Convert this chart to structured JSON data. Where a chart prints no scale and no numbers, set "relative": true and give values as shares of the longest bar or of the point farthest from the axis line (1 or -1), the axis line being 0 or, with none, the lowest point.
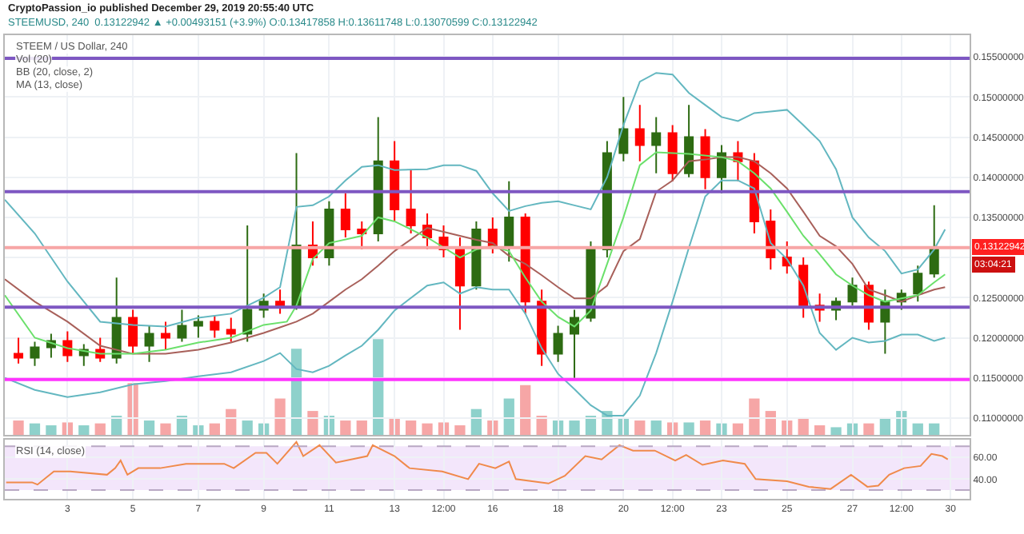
{
  "chart_data": [
    {
      "type": "candlestick",
      "title": "CryptoPassion_io published December 29, 2019 20:55:40 UTC",
      "subtitle": "STEEMUSD, 240  0.13122942 ▲ +0.00493151 (+3.9%) O:0.13417858 H:0.13611748 L:0.13070599 C:0.13122942",
      "annotations": [
        "STEEM / US Dollar, 240",
        "Vol (20)",
        "BB (20, close, 2)",
        "MA (13, close)",
        "03:04:21"
      ],
      "x": [
        "2019-12-01T12:00",
        "2019-12-02T00:00",
        "2019-12-02T12:00",
        "2019-12-03T00:00",
        "2019-12-03T12:00",
        "2019-12-04T00:00",
        "2019-12-04T12:00",
        "2019-12-05T00:00",
        "2019-12-05T12:00",
        "2019-12-06T00:00",
        "2019-12-06T12:00",
        "2019-12-07T00:00",
        "2019-12-07T12:00",
        "2019-12-08T00:00",
        "2019-12-08T12:00",
        "2019-12-09T00:00",
        "2019-12-09T12:00",
        "2019-12-10T00:00",
        "2019-12-10T12:00",
        "2019-12-11T00:00",
        "2019-12-11T12:00",
        "2019-12-12T00:00",
        "2019-12-12T12:00",
        "2019-12-13T00:00",
        "2019-12-13T12:00",
        "2019-12-14T00:00",
        "2019-12-14T12:00",
        "2019-12-15T00:00",
        "2019-12-15T12:00",
        "2019-12-16T00:00",
        "2019-12-16T12:00",
        "2019-12-17T00:00",
        "2019-12-17T12:00",
        "2019-12-18T00:00",
        "2019-12-18T12:00",
        "2019-12-19T00:00",
        "2019-12-19T12:00",
        "2019-12-20T00:00",
        "2019-12-20T12:00",
        "2019-12-21T00:00",
        "2019-12-21T12:00",
        "2019-12-22T00:00",
        "2019-12-22T12:00",
        "2019-12-23T00:00",
        "2019-12-23T12:00",
        "2019-12-24T00:00",
        "2019-12-24T12:00",
        "2019-12-25T00:00",
        "2019-12-25T12:00",
        "2019-12-26T00:00",
        "2019-12-26T12:00",
        "2019-12-27T00:00",
        "2019-12-27T12:00",
        "2019-12-28T00:00",
        "2019-12-28T12:00",
        "2019-12-29T00:00",
        "2019-12-29T12:00"
      ],
      "ohlc": [
        [
          0.118,
          0.12,
          0.1168,
          0.1175
        ],
        [
          0.1175,
          0.1195,
          0.1165,
          0.1188
        ],
        [
          0.1188,
          0.1205,
          0.1175,
          0.1196
        ],
        [
          0.1196,
          0.1208,
          0.117,
          0.1178
        ],
        [
          0.1178,
          0.1192,
          0.1165,
          0.1185
        ],
        [
          0.1185,
          0.12,
          0.117,
          0.1175
        ],
        [
          0.1175,
          0.1275,
          0.1168,
          0.1225
        ],
        [
          0.1225,
          0.1235,
          0.118,
          0.119
        ],
        [
          0.119,
          0.1215,
          0.117,
          0.1205
        ],
        [
          0.1205,
          0.122,
          0.1185,
          0.12
        ],
        [
          0.12,
          0.1235,
          0.1195,
          0.1215
        ],
        [
          0.1215,
          0.1228,
          0.12,
          0.122
        ],
        [
          0.122,
          0.1228,
          0.12,
          0.121
        ],
        [
          0.121,
          0.1225,
          0.1195,
          0.1205
        ],
        [
          0.1205,
          0.134,
          0.1195,
          0.1235
        ],
        [
          0.1235,
          0.1255,
          0.1225,
          0.1245
        ],
        [
          0.1245,
          0.126,
          0.123,
          0.124
        ],
        [
          0.124,
          0.143,
          0.1235,
          0.1315
        ],
        [
          0.1315,
          0.1345,
          0.129,
          0.13
        ],
        [
          0.13,
          0.137,
          0.129,
          0.136
        ],
        [
          0.136,
          0.138,
          0.1325,
          0.1335
        ],
        [
          0.1335,
          0.1345,
          0.131,
          0.133
        ],
        [
          0.133,
          0.1475,
          0.132,
          0.142
        ],
        [
          0.142,
          0.1445,
          0.1345,
          0.136
        ],
        [
          0.136,
          0.141,
          0.133,
          0.134
        ],
        [
          0.134,
          0.1355,
          0.131,
          0.1325
        ],
        [
          0.1325,
          0.134,
          0.13,
          0.131
        ],
        [
          0.131,
          0.1325,
          0.121,
          0.1265
        ],
        [
          0.1265,
          0.1345,
          0.126,
          0.1335
        ],
        [
          0.1335,
          0.135,
          0.1305,
          0.1315
        ],
        [
          0.1315,
          0.1395,
          0.1295,
          0.135
        ],
        [
          0.135,
          0.1355,
          0.123,
          0.1245
        ],
        [
          0.1245,
          0.126,
          0.1165,
          0.118
        ],
        [
          0.118,
          0.1215,
          0.117,
          0.1205
        ],
        [
          0.1205,
          0.1235,
          0.115,
          0.1225
        ],
        [
          0.1225,
          0.132,
          0.122,
          0.131
        ],
        [
          0.131,
          0.1445,
          0.13,
          0.143
        ],
        [
          0.143,
          0.15,
          0.142,
          0.146
        ],
        [
          0.146,
          0.149,
          0.142,
          0.144
        ],
        [
          0.144,
          0.1475,
          0.1405,
          0.1455
        ],
        [
          0.1455,
          0.1465,
          0.1395,
          0.1405
        ],
        [
          0.1405,
          0.149,
          0.14,
          0.145
        ],
        [
          0.145,
          0.146,
          0.1385,
          0.14
        ],
        [
          0.14,
          0.144,
          0.138,
          0.143
        ],
        [
          0.143,
          0.1445,
          0.1395,
          0.142
        ],
        [
          0.142,
          0.143,
          0.133,
          0.1345
        ],
        [
          0.1345,
          0.136,
          0.1285,
          0.13
        ],
        [
          0.13,
          0.132,
          0.128,
          0.129
        ],
        [
          0.129,
          0.13,
          0.1225,
          0.124
        ],
        [
          0.124,
          0.1255,
          0.122,
          0.1235
        ],
        [
          0.1235,
          0.125,
          0.1222,
          0.1245
        ],
        [
          0.1245,
          0.1275,
          0.124,
          0.1265
        ],
        [
          0.1265,
          0.127,
          0.121,
          0.122
        ],
        [
          0.122,
          0.126,
          0.118,
          0.1245
        ],
        [
          0.1245,
          0.126,
          0.1235,
          0.1255
        ],
        [
          0.1255,
          0.129,
          0.1245,
          0.128
        ],
        [
          0.128,
          0.1365,
          0.1275,
          0.1312
        ]
      ],
      "colors": [
        "#ff0000",
        "#2d6b12",
        "#2d6b12",
        "#ff0000",
        "#2d6b12",
        "#ff0000",
        "#2d6b12",
        "#ff0000",
        "#2d6b12",
        "#ff0000",
        "#2d6b12",
        "#2d6b12",
        "#ff0000",
        "#ff0000",
        "#2d6b12",
        "#2d6b12",
        "#ff0000",
        "#2d6b12",
        "#ff0000",
        "#2d6b12",
        "#ff0000",
        "#ff0000",
        "#2d6b12",
        "#ff0000",
        "#ff0000",
        "#ff0000",
        "#ff0000",
        "#ff0000",
        "#2d6b12",
        "#ff0000",
        "#2d6b12",
        "#ff0000",
        "#ff0000",
        "#2d6b12",
        "#2d6b12",
        "#2d6b12",
        "#2d6b12",
        "#2d6b12",
        "#ff0000",
        "#2d6b12",
        "#ff0000",
        "#2d6b12",
        "#ff0000",
        "#2d6b12",
        "#ff0000",
        "#ff0000",
        "#ff0000",
        "#ff0000",
        "#ff0000",
        "#ff0000",
        "#2d6b12",
        "#2d6b12",
        "#ff0000",
        "#2d6b12",
        "#2d6b12",
        "#2d6b12",
        "#2d6b12"
      ],
      "series": [
        {
          "type": "line",
          "color": "#63b7c0",
          "x": [
            "2019-12-01T02:00",
            "2019-12-02T00:00",
            "2019-12-03T00:00",
            "2019-12-04T00:00",
            "2019-12-05T00:00",
            "2019-12-06T00:00",
            "2019-12-07T00:00",
            "2019-12-08T00:00",
            "2019-12-09T00:00",
            "2019-12-09T12:00",
            "2019-12-10T00:00",
            "2019-12-10T12:00",
            "2019-12-11T00:00",
            "2019-12-11T12:00",
            "2019-12-12T00:00",
            "2019-12-12T12:00",
            "2019-12-13T00:00",
            "2019-12-14T00:00",
            "2019-12-14T12:00",
            "2019-12-15T00:00",
            "2019-12-15T12:00",
            "2019-12-16T00:00",
            "2019-12-16T12:00",
            "2019-12-17T00:00",
            "2019-12-17T12:00",
            "2019-12-18T00:00",
            "2019-12-18T12:00",
            "2019-12-19T00:00",
            "2019-12-19T12:00",
            "2019-12-20T00:00",
            "2019-12-20T12:00",
            "2019-12-21T00:00",
            "2019-12-21T12:00",
            "2019-12-22T00:00",
            "2019-12-22T12:00",
            "2019-12-23T00:00",
            "2019-12-23T12:00",
            "2019-12-24T00:00",
            "2019-12-24T12:00",
            "2019-12-25T00:00",
            "2019-12-25T12:00",
            "2019-12-26T00:00",
            "2019-12-26T12:00",
            "2019-12-27T00:00",
            "2019-12-27T12:00",
            "2019-12-28T00:00",
            "2019-12-28T12:00",
            "2019-12-29T00:00",
            "2019-12-29T12:00",
            "2019-12-29T20:00"
          ],
          "values": [
            0.1372,
            0.133,
            0.127,
            0.122,
            0.1216,
            0.1214,
            0.1225,
            0.123,
            0.125,
            0.1263,
            0.1363,
            0.1365,
            0.1376,
            0.1396,
            0.1413,
            0.1415,
            0.1409,
            0.141,
            0.1415,
            0.1415,
            0.1408,
            0.138,
            0.1358,
            0.1364,
            0.1368,
            0.137,
            0.1365,
            0.136,
            0.14,
            0.1465,
            0.1519,
            0.153,
            0.1528,
            0.1505,
            0.149,
            0.1475,
            0.147,
            0.148,
            0.1482,
            0.1484,
            0.1465,
            0.1445,
            0.141,
            0.135,
            0.1325,
            0.1308,
            0.128,
            0.1285,
            0.131,
            0.1335
          ]
        },
        {
          "type": "line",
          "color": "#63b7c0",
          "x": [
            "2019-12-01T02:00",
            "2019-12-02T00:00",
            "2019-12-03T00:00",
            "2019-12-04T00:00",
            "2019-12-05T00:00",
            "2019-12-06T00:00",
            "2019-12-07T00:00",
            "2019-12-08T00:00",
            "2019-12-09T00:00",
            "2019-12-09T12:00",
            "2019-12-10T00:00",
            "2019-12-10T12:00",
            "2019-12-11T00:00",
            "2019-12-11T12:00",
            "2019-12-12T00:00",
            "2019-12-12T12:00",
            "2019-12-13T00:00",
            "2019-12-14T00:00",
            "2019-12-14T12:00",
            "2019-12-15T00:00",
            "2019-12-15T12:00",
            "2019-12-16T00:00",
            "2019-12-16T12:00",
            "2019-12-17T00:00",
            "2019-12-17T12:00",
            "2019-12-18T00:00",
            "2019-12-18T12:00",
            "2019-12-19T00:00",
            "2019-12-19T12:00",
            "2019-12-20T00:00",
            "2019-12-20T12:00",
            "2019-12-21T00:00",
            "2019-12-21T12:00",
            "2019-12-22T00:00",
            "2019-12-22T12:00",
            "2019-12-23T00:00",
            "2019-12-23T12:00",
            "2019-12-24T00:00",
            "2019-12-24T12:00",
            "2019-12-25T00:00",
            "2019-12-25T12:00",
            "2019-12-26T00:00",
            "2019-12-26T12:00",
            "2019-12-27T00:00",
            "2019-12-27T12:00",
            "2019-12-28T00:00",
            "2019-12-28T12:00",
            "2019-12-29T00:00",
            "2019-12-29T12:00",
            "2019-12-29T20:00"
          ],
          "values": [
            0.115,
            0.1135,
            0.1126,
            0.1132,
            0.1142,
            0.1146,
            0.1152,
            0.1157,
            0.1171,
            0.1181,
            0.1161,
            0.1157,
            0.1165,
            0.1178,
            0.119,
            0.121,
            0.1234,
            0.1265,
            0.1269,
            0.1255,
            0.1263,
            0.126,
            0.126,
            0.123,
            0.1187,
            0.1155,
            0.1136,
            0.1116,
            0.1103,
            0.1103,
            0.1128,
            0.1181,
            0.1245,
            0.1312,
            0.1376,
            0.1396,
            0.1396,
            0.1386,
            0.1318,
            0.1298,
            0.1265,
            0.1206,
            0.1185,
            0.12,
            0.1194,
            0.1196,
            0.1204,
            0.1204,
            0.1196,
            0.12
          ]
        },
        {
          "type": "line",
          "color": "#a8605a",
          "x": [
            "2019-12-01T02:00",
            "2019-12-02T00:00",
            "2019-12-03T00:00",
            "2019-12-04T00:00",
            "2019-12-05T00:00",
            "2019-12-06T00:00",
            "2019-12-07T00:00",
            "2019-12-08T00:00",
            "2019-12-09T00:00",
            "2019-12-09T12:00",
            "2019-12-10T00:00",
            "2019-12-10T12:00",
            "2019-12-11T00:00",
            "2019-12-11T12:00",
            "2019-12-12T00:00",
            "2019-12-12T12:00",
            "2019-12-13T00:00",
            "2019-12-14T00:00",
            "2019-12-14T12:00",
            "2019-12-15T00:00",
            "2019-12-15T12:00",
            "2019-12-16T00:00",
            "2019-12-16T12:00",
            "2019-12-17T00:00",
            "2019-12-17T12:00",
            "2019-12-18T00:00",
            "2019-12-18T12:00",
            "2019-12-19T00:00",
            "2019-12-19T12:00",
            "2019-12-20T00:00",
            "2019-12-20T12:00",
            "2019-12-21T00:00",
            "2019-12-21T12:00",
            "2019-12-22T00:00",
            "2019-12-22T12:00",
            "2019-12-23T00:00",
            "2019-12-23T12:00",
            "2019-12-24T00:00",
            "2019-12-24T12:00",
            "2019-12-25T00:00",
            "2019-12-25T12:00",
            "2019-12-26T00:00",
            "2019-12-26T12:00",
            "2019-12-27T00:00",
            "2019-12-27T12:00",
            "2019-12-28T00:00",
            "2019-12-28T12:00",
            "2019-12-29T00:00",
            "2019-12-29T12:00",
            "2019-12-29T20:00"
          ],
          "values": [
            0.1273,
            0.1245,
            0.122,
            0.119,
            0.118,
            0.118,
            0.1185,
            0.1194,
            0.1206,
            0.1213,
            0.122,
            0.123,
            0.1245,
            0.126,
            0.1273,
            0.129,
            0.1308,
            0.1337,
            0.1332,
            0.1327,
            0.1322,
            0.1318,
            0.1302,
            0.1292,
            0.1278,
            0.1263,
            0.1249,
            0.1249,
            0.1265,
            0.1308,
            0.1323,
            0.1382,
            0.1396,
            0.142,
            0.1422,
            0.1425,
            0.1425,
            0.142,
            0.1405,
            0.1386,
            0.1357,
            0.1327,
            0.1314,
            0.1292,
            0.126,
            0.1253,
            0.1245,
            0.1253,
            0.126,
            0.1263
          ]
        },
        {
          "type": "line",
          "color": "#6be06b",
          "x": [
            "2019-12-01T02:00",
            "2019-12-02T00:00",
            "2019-12-03T00:00",
            "2019-12-04T00:00",
            "2019-12-05T00:00",
            "2019-12-06T00:00",
            "2019-12-07T00:00",
            "2019-12-08T00:00",
            "2019-12-09T00:00",
            "2019-12-09T17:00",
            "2019-12-10T00:00",
            "2019-12-10T12:00",
            "2019-12-11T00:00",
            "2019-12-12T00:00",
            "2019-12-12T12:00",
            "2019-12-13T00:00",
            "2019-12-14T00:00",
            "2019-12-15T00:00",
            "2019-12-15T12:00",
            "2019-12-16T00:00",
            "2019-12-16T12:00",
            "2019-12-17T00:00",
            "2019-12-17T12:00",
            "2019-12-18T00:00",
            "2019-12-18T12:00",
            "2019-12-19T00:00",
            "2019-12-19T12:00",
            "2019-12-20T00:00",
            "2019-12-20T12:00",
            "2019-12-21T00:00",
            "2019-12-22T00:00",
            "2019-12-23T00:00",
            "2019-12-23T12:00",
            "2019-12-24T00:00",
            "2019-12-24T12:00",
            "2019-12-25T00:00",
            "2019-12-25T12:00",
            "2019-12-26T00:00",
            "2019-12-26T12:00",
            "2019-12-27T00:00",
            "2019-12-27T12:00",
            "2019-12-28T00:00",
            "2019-12-28T12:00",
            "2019-12-29T00:00",
            "2019-12-29T12:00",
            "2019-12-29T20:00"
          ],
          "values": [
            0.1253,
            0.12,
            0.1187,
            0.118,
            0.118,
            0.1185,
            0.1194,
            0.12,
            0.1216,
            0.122,
            0.124,
            0.1298,
            0.1318,
            0.1327,
            0.135,
            0.1345,
            0.1325,
            0.13,
            0.131,
            0.1314,
            0.1308,
            0.1275,
            0.1245,
            0.1226,
            0.1214,
            0.1234,
            0.1292,
            0.135,
            0.1415,
            0.1431,
            0.1429,
            0.1425,
            0.142,
            0.1405,
            0.1386,
            0.1357,
            0.1327,
            0.1304,
            0.1279,
            0.1265,
            0.1253,
            0.1245,
            0.1249,
            0.1253,
            0.1269,
            0.1279
          ]
        }
      ],
      "ref_lines": [
        {
          "axis": "y",
          "value": 0.1548,
          "color": "#7e57c2"
        },
        {
          "axis": "y",
          "value": 0.1382,
          "color": "#7e57c2"
        },
        {
          "axis": "y",
          "value": 0.1238,
          "color": "#7e57c2"
        },
        {
          "axis": "y",
          "value": 0.1148,
          "color": "#ff33ff"
        },
        {
          "axis": "y",
          "value": 0.13122942,
          "label": "0.13122942",
          "color": "#f7a6a6"
        }
      ],
      "xlim": [
        "2019-12-01T02:00",
        "2019-12-30T14:00"
      ],
      "xticks": [
        {
          "value": "2019-12-03",
          "label": null
        },
        {
          "value": "2019-12-05",
          "label": null
        },
        {
          "value": "2019-12-07",
          "label": null
        },
        {
          "value": "2019-12-09",
          "label": null
        },
        {
          "value": "2019-12-11",
          "label": null
        },
        {
          "value": "2019-12-13",
          "label": null
        },
        {
          "value": "2019-12-14T12:00",
          "label": null
        },
        {
          "value": "2019-12-16",
          "label": null
        },
        {
          "value": "2019-12-18",
          "label": null
        },
        {
          "value": "2019-12-20",
          "label": null
        },
        {
          "value": "2019-12-21T12:00",
          "label": null
        },
        {
          "value": "2019-12-23",
          "label": null
        },
        {
          "value": "2019-12-25",
          "label": null
        },
        {
          "value": "2019-12-27",
          "label": null
        },
        {
          "value": "2019-12-28T12:00",
          "label": null
        },
        {
          "value": "2019-12-30",
          "label": null
        }
      ],
      "ylim": [
        0.1079,
        0.1577
      ],
      "yticks": [
        {
          "value": 0.11,
          "label": "0.11000000"
        },
        {
          "value": 0.115,
          "label": "0.11500000"
        },
        {
          "value": 0.12,
          "label": "0.12000000"
        },
        {
          "value": 0.125,
          "label": "0.12500000"
        },
        {
          "value": 0.13,
          "label": null
        },
        {
          "value": 0.135,
          "label": "0.13500000"
        },
        {
          "value": 0.14,
          "label": "0.14000000"
        },
        {
          "value": 0.145,
          "label": "0.14500000"
        },
        {
          "value": 0.15,
          "label": "0.15000000"
        },
        {
          "value": 0.155,
          "label": "0.15500000"
        }
      ],
      "grid": true,
      "tick_labels": "y"
    },
    {
      "type": "bar",
      "relative": true,
      "tick_labels": false,
      "x": [
        "2019-12-01T12:00",
        "2019-12-02T00:00",
        "2019-12-02T12:00",
        "2019-12-03T00:00",
        "2019-12-03T12:00",
        "2019-12-04T00:00",
        "2019-12-04T12:00",
        "2019-12-05T00:00",
        "2019-12-05T12:00",
        "2019-12-06T00:00",
        "2019-12-06T12:00",
        "2019-12-07T00:00",
        "2019-12-07T12:00",
        "2019-12-08T00:00",
        "2019-12-08T12:00",
        "2019-12-09T00:00",
        "2019-12-09T12:00",
        "2019-12-10T00:00",
        "2019-12-10T12:00",
        "2019-12-11T00:00",
        "2019-12-11T12:00",
        "2019-12-12T00:00",
        "2019-12-12T12:00",
        "2019-12-13T00:00",
        "2019-12-13T12:00",
        "2019-12-14T00:00",
        "2019-12-14T12:00",
        "2019-12-15T00:00",
        "2019-12-15T12:00",
        "2019-12-16T00:00",
        "2019-12-16T12:00",
        "2019-12-17T00:00",
        "2019-12-17T12:00",
        "2019-12-18T00:00",
        "2019-12-18T12:00",
        "2019-12-19T00:00",
        "2019-12-19T12:00",
        "2019-12-20T00:00",
        "2019-12-20T12:00",
        "2019-12-21T00:00",
        "2019-12-21T12:00",
        "2019-12-22T00:00",
        "2019-12-22T12:00",
        "2019-12-23T00:00",
        "2019-12-23T12:00",
        "2019-12-24T00:00",
        "2019-12-24T12:00",
        "2019-12-25T00:00",
        "2019-12-25T12:00",
        "2019-12-26T00:00",
        "2019-12-26T12:00",
        "2019-12-27T00:00",
        "2019-12-27T12:00",
        "2019-12-28T00:00",
        "2019-12-28T12:00",
        "2019-12-29T00:00",
        "2019-12-29T12:00"
      ],
      "values": [
        0.15,
        0.12,
        0.1,
        0.13,
        0.1,
        0.12,
        0.2,
        0.54,
        0.15,
        0.12,
        0.2,
        0.1,
        0.12,
        0.27,
        0.15,
        0.12,
        0.38,
        0.9,
        0.25,
        0.2,
        0.15,
        0.15,
        1,
        0.18,
        0.15,
        0.12,
        0.13,
        0.1,
        0.27,
        0.15,
        0.38,
        0.52,
        0.2,
        0.15,
        0.15,
        0.2,
        0.25,
        0.18,
        0.15,
        0.15,
        0.13,
        0.13,
        0.15,
        0.12,
        0.12,
        0.38,
        0.25,
        0.15,
        0.17,
        0.1,
        0.08,
        0.12,
        0.12,
        0.18,
        0.25,
        0.12,
        0.12
      ],
      "colors": [
        "#f6a6a6",
        "#8ed1cb",
        "#8ed1cb",
        "#f6a6a6",
        "#8ed1cb",
        "#f6a6a6",
        "#8ed1cb",
        "#f6a6a6",
        "#8ed1cb",
        "#f6a6a6",
        "#8ed1cb",
        "#8ed1cb",
        "#f6a6a6",
        "#f6a6a6",
        "#8ed1cb",
        "#8ed1cb",
        "#f6a6a6",
        "#8ed1cb",
        "#f6a6a6",
        "#8ed1cb",
        "#f6a6a6",
        "#f6a6a6",
        "#8ed1cb",
        "#f6a6a6",
        "#f6a6a6",
        "#f6a6a6",
        "#f6a6a6",
        "#f6a6a6",
        "#8ed1cb",
        "#f6a6a6",
        "#8ed1cb",
        "#f6a6a6",
        "#f6a6a6",
        "#8ed1cb",
        "#8ed1cb",
        "#8ed1cb",
        "#8ed1cb",
        "#8ed1cb",
        "#f6a6a6",
        "#8ed1cb",
        "#f6a6a6",
        "#8ed1cb",
        "#f6a6a6",
        "#8ed1cb",
        "#f6a6a6",
        "#f6a6a6",
        "#f6a6a6",
        "#f6a6a6",
        "#f6a6a6",
        "#f6a6a6",
        "#8ed1cb",
        "#8ed1cb",
        "#f6a6a6",
        "#8ed1cb",
        "#8ed1cb",
        "#8ed1cb",
        "#8ed1cb"
      ],
      "xlim": [
        "2019-12-01T02:00",
        "2019-12-30T14:00"
      ]
    },
    {
      "type": "line",
      "annotations": [
        "RSI (14, close)"
      ],
      "series": [
        {
          "color": "#f08a4b",
          "x": [
            "2019-12-01T03:00",
            "2019-12-01T22:00",
            "2019-12-02T02:00",
            "2019-12-02T14:00",
            "2019-12-03T02:00",
            "2019-12-04T05:00",
            "2019-12-04T11:00",
            "2019-12-04T15:00",
            "2019-12-04T20:00",
            "2019-12-05T04:00",
            "2019-12-05T20:00",
            "2019-12-06T15:00",
            "2019-12-07T19:00",
            "2019-12-08T02:00",
            "2019-12-08T18:00",
            "2019-12-09T02:00",
            "2019-12-09T10:00",
            "2019-12-10T00:00",
            "2019-12-10T05:00",
            "2019-12-10T17:00",
            "2019-12-11T05:00",
            "2019-12-12T04:00",
            "2019-12-12T08:00",
            "2019-12-13T00:00",
            "2019-12-13T11:00",
            "2019-12-14T11:00",
            "2019-12-15T06:00",
            "2019-12-15T14:00",
            "2019-12-16T02:00",
            "2019-12-16T12:00",
            "2019-12-16T17:00",
            "2019-12-17T17:00",
            "2019-12-18T05:00",
            "2019-12-18T20:00",
            "2019-12-19T08:00",
            "2019-12-19T21:00",
            "2019-12-20T07:00",
            "2019-12-20T23:00",
            "2019-12-21T14:00",
            "2019-12-21T22:00",
            "2019-12-22T10:00",
            "2019-12-23T01:00",
            "2019-12-23T17:00",
            "2019-12-24T01:00",
            "2019-12-25T00:00",
            "2019-12-25T16:00",
            "2019-12-26T08:00",
            "2019-12-26T23:00",
            "2019-12-27T11:00",
            "2019-12-27T19:00",
            "2019-12-28T03:00",
            "2019-12-28T14:00",
            "2019-12-29T02:00",
            "2019-12-29T10:00",
            "2019-12-29T18:00",
            "2019-12-29T22:00"
          ],
          "values": [
            37,
            37,
            35,
            47,
            47,
            44,
            50,
            57,
            44,
            50,
            50,
            54,
            54,
            50,
            64,
            64,
            54,
            74,
            61,
            71,
            55,
            61,
            71,
            61,
            50,
            47,
            40,
            54,
            50,
            56,
            40,
            36,
            43,
            61,
            58,
            71,
            66,
            66,
            57,
            62,
            53,
            57,
            54,
            40,
            38,
            33,
            31,
            44,
            33,
            34,
            44,
            50,
            52,
            63,
            61,
            58
          ]
        }
      ],
      "bands": [
        {
          "axis": "y",
          "from": 30,
          "to": 70,
          "color": "#f3e6fb"
        }
      ],
      "ref_lines": [
        {
          "axis": "y",
          "value": 70,
          "color": "#b9a8c4",
          "line_style": "dashed"
        },
        {
          "axis": "y",
          "value": 30,
          "color": "#b9a8c4",
          "line_style": "dashed"
        }
      ],
      "xlim": [
        "2019-12-01T02:00",
        "2019-12-30T14:00"
      ],
      "xticks": [
        {
          "value": "2019-12-03",
          "label": "3"
        },
        {
          "value": "2019-12-05",
          "label": "5"
        },
        {
          "value": "2019-12-07",
          "label": "7"
        },
        {
          "value": "2019-12-09",
          "label": "9"
        },
        {
          "value": "2019-12-11",
          "label": "11"
        },
        {
          "value": "2019-12-13",
          "label": "13"
        },
        {
          "value": "2019-12-14T12:00",
          "label": "12:00"
        },
        {
          "value": "2019-12-16",
          "label": "16"
        },
        {
          "value": "2019-12-18",
          "label": "18"
        },
        {
          "value": "2019-12-20",
          "label": "20"
        },
        {
          "value": "2019-12-21T12:00",
          "label": "12:00"
        },
        {
          "value": "2019-12-23",
          "label": "23"
        },
        {
          "value": "2019-12-25",
          "label": "25"
        },
        {
          "value": "2019-12-27",
          "label": "27"
        },
        {
          "value": "2019-12-28T12:00",
          "label": "12:00"
        },
        {
          "value": "2019-12-30",
          "label": "30"
        }
      ],
      "ylim": [
        22,
        76
      ],
      "yticks": [
        {
          "value": 60,
          "label": "60.00"
        },
        {
          "value": 40,
          "label": "40.00"
        }
      ],
      "grid": true
    }
  ]
}
